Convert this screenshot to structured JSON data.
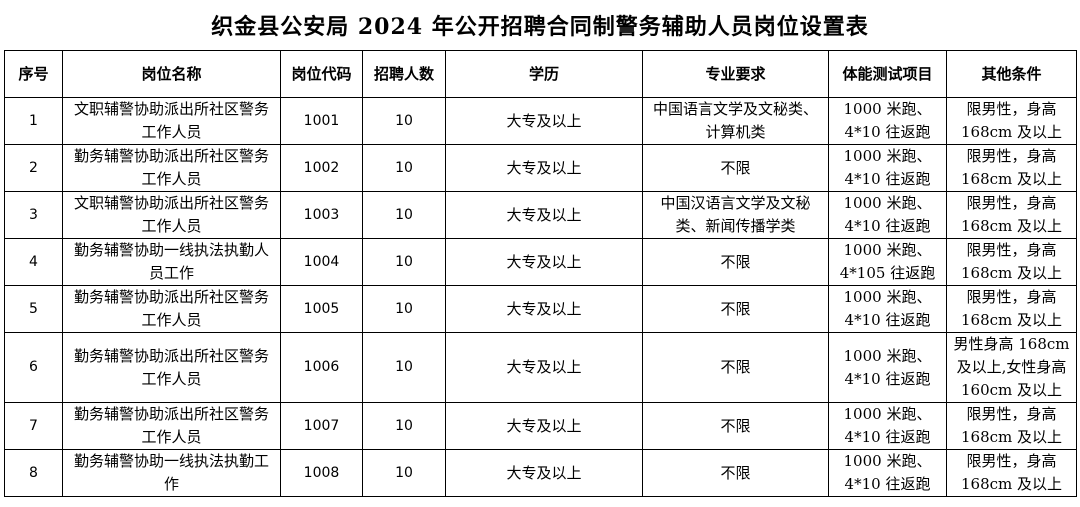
{
  "title": "织金县公安局 2024 年公开招聘合同制警务辅助人员岗位设置表",
  "headers": [
    "序号",
    "岗位名称",
    "岗位代码",
    "招聘人数",
    "学历",
    "专业要求",
    "体能测试项目",
    "其他条件"
  ],
  "rows": [
    {
      "no": "1",
      "name": "文职辅警协助派出所社区警务工作人员",
      "code": "1001",
      "count": "10",
      "edu": "大专及以上",
      "major": "中国语言文学及文秘类、计算机类",
      "fitness": "1000 米跑、4*10 往返跑",
      "other": "限男性，身高168cm 及以上"
    },
    {
      "no": "2",
      "name": "勤务辅警协助派出所社区警务工作人员",
      "code": "1002",
      "count": "10",
      "edu": "大专及以上",
      "major": "不限",
      "fitness": "1000 米跑、4*10 往返跑",
      "other": "限男性，身高168cm 及以上"
    },
    {
      "no": "3",
      "name": "文职辅警协助派出所社区警务工作人员",
      "code": "1003",
      "count": "10",
      "edu": "大专及以上",
      "major": "中国汉语言文学及文秘类、新闻传播学类",
      "fitness": "1000 米跑、4*10 往返跑",
      "other": "限男性，身高168cm 及以上"
    },
    {
      "no": "4",
      "name": "勤务辅警协助一线执法执勤人员工作",
      "code": "1004",
      "count": "10",
      "edu": "大专及以上",
      "major": "不限",
      "fitness": "1000 米跑、4*105 往返跑",
      "other": "限男性，身高168cm 及以上"
    },
    {
      "no": "5",
      "name": "勤务辅警协助派出所社区警务工作人员",
      "code": "1005",
      "count": "10",
      "edu": "大专及以上",
      "major": "不限",
      "fitness": "1000 米跑、4*10 往返跑",
      "other": "限男性，身高168cm 及以上"
    },
    {
      "no": "6",
      "name": "勤务辅警协助派出所社区警务工作人员",
      "code": "1006",
      "count": "10",
      "edu": "大专及以上",
      "major": "不限",
      "fitness": "1000 米跑、4*10 往返跑",
      "other": "男性身高 168cm 及以上,女性身高 160cm 及以上"
    },
    {
      "no": "7",
      "name": "勤务辅警协助派出所社区警务工作人员",
      "code": "1007",
      "count": "10",
      "edu": "大专及以上",
      "major": "不限",
      "fitness": "1000 米跑、4*10 往返跑",
      "other": "限男性，身高168cm 及以上"
    },
    {
      "no": "8",
      "name": "勤务辅警协助一线执法执勤工作",
      "code": "1008",
      "count": "10",
      "edu": "大专及以上",
      "major": "不限",
      "fitness": "1000 米跑、4*10 往返跑",
      "other": "限男性，身高168cm 及以上"
    }
  ]
}
